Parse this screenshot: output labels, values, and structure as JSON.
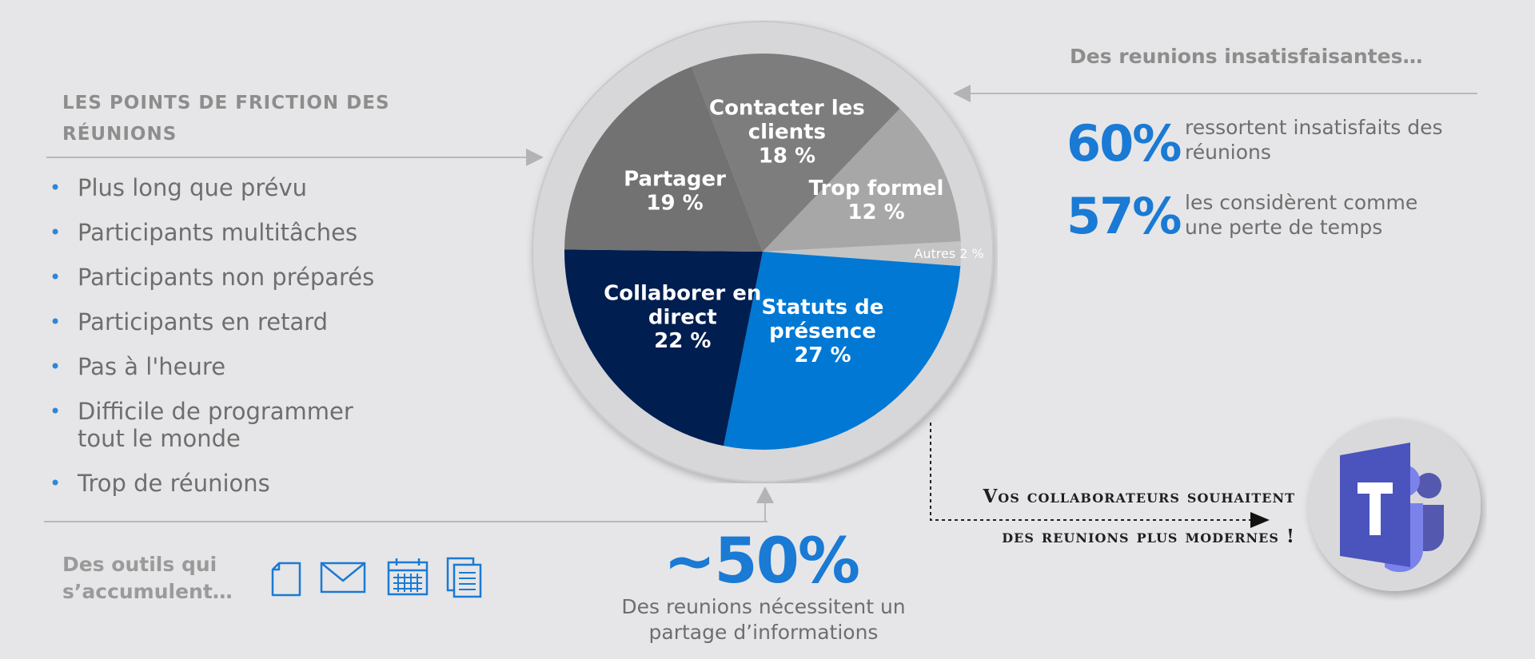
{
  "friction": {
    "title": "LES POINTS DE FRICTION DES RÉUNIONS",
    "items": [
      "Plus long que prévu",
      "Participants multitâches",
      "Participants non préparés",
      "Participants en retard",
      "Pas à l'heure",
      "Difficile de programmer tout le monde",
      "Trop de réunions"
    ]
  },
  "tools": {
    "label": "Des outils qui s’accumulent…",
    "icons": [
      "document-icon",
      "mail-icon",
      "calendar-icon",
      "notes-icon"
    ]
  },
  "meetings_share": {
    "value": "~50%",
    "caption": "Des reunions nécessitent un partage d’informations"
  },
  "unsatisfying": {
    "title": "Des reunions insatisfaisantes…",
    "stats": [
      {
        "value": "60%",
        "text": "ressortent insatisfaits des réunions"
      },
      {
        "value": "57%",
        "text": "les considèrent comme une perte de temps"
      }
    ]
  },
  "modern": {
    "line1": "Vos collaborateurs souhaitent",
    "line2": "des reunions plus modernes !"
  },
  "colors": {
    "accent": "#1a7ad4",
    "navy": "#001e50",
    "gray_dark": "#727272",
    "gray_mid": "#7d7d7d",
    "gray_light": "#a7a7a7",
    "gray_pale": "#c4c4c4",
    "teams": "#5558af"
  },
  "chart_data": {
    "type": "pie",
    "title": "",
    "slices": [
      {
        "label": "Autres 2 %",
        "value": 2,
        "color": "#c4c4c4"
      },
      {
        "label": "Statuts de présence 27 %",
        "value": 27,
        "color": "#0078d4"
      },
      {
        "label": "Collaborer en direct 22 %",
        "value": 22,
        "color": "#001e50"
      },
      {
        "label": "Partager 19 %",
        "value": 19,
        "color": "#727272"
      },
      {
        "label": "Contacter les clients 18 %",
        "value": 18,
        "color": "#7d7d7d"
      },
      {
        "label": "Trop formel 12 %",
        "value": 12,
        "color": "#a7a7a7"
      }
    ]
  }
}
